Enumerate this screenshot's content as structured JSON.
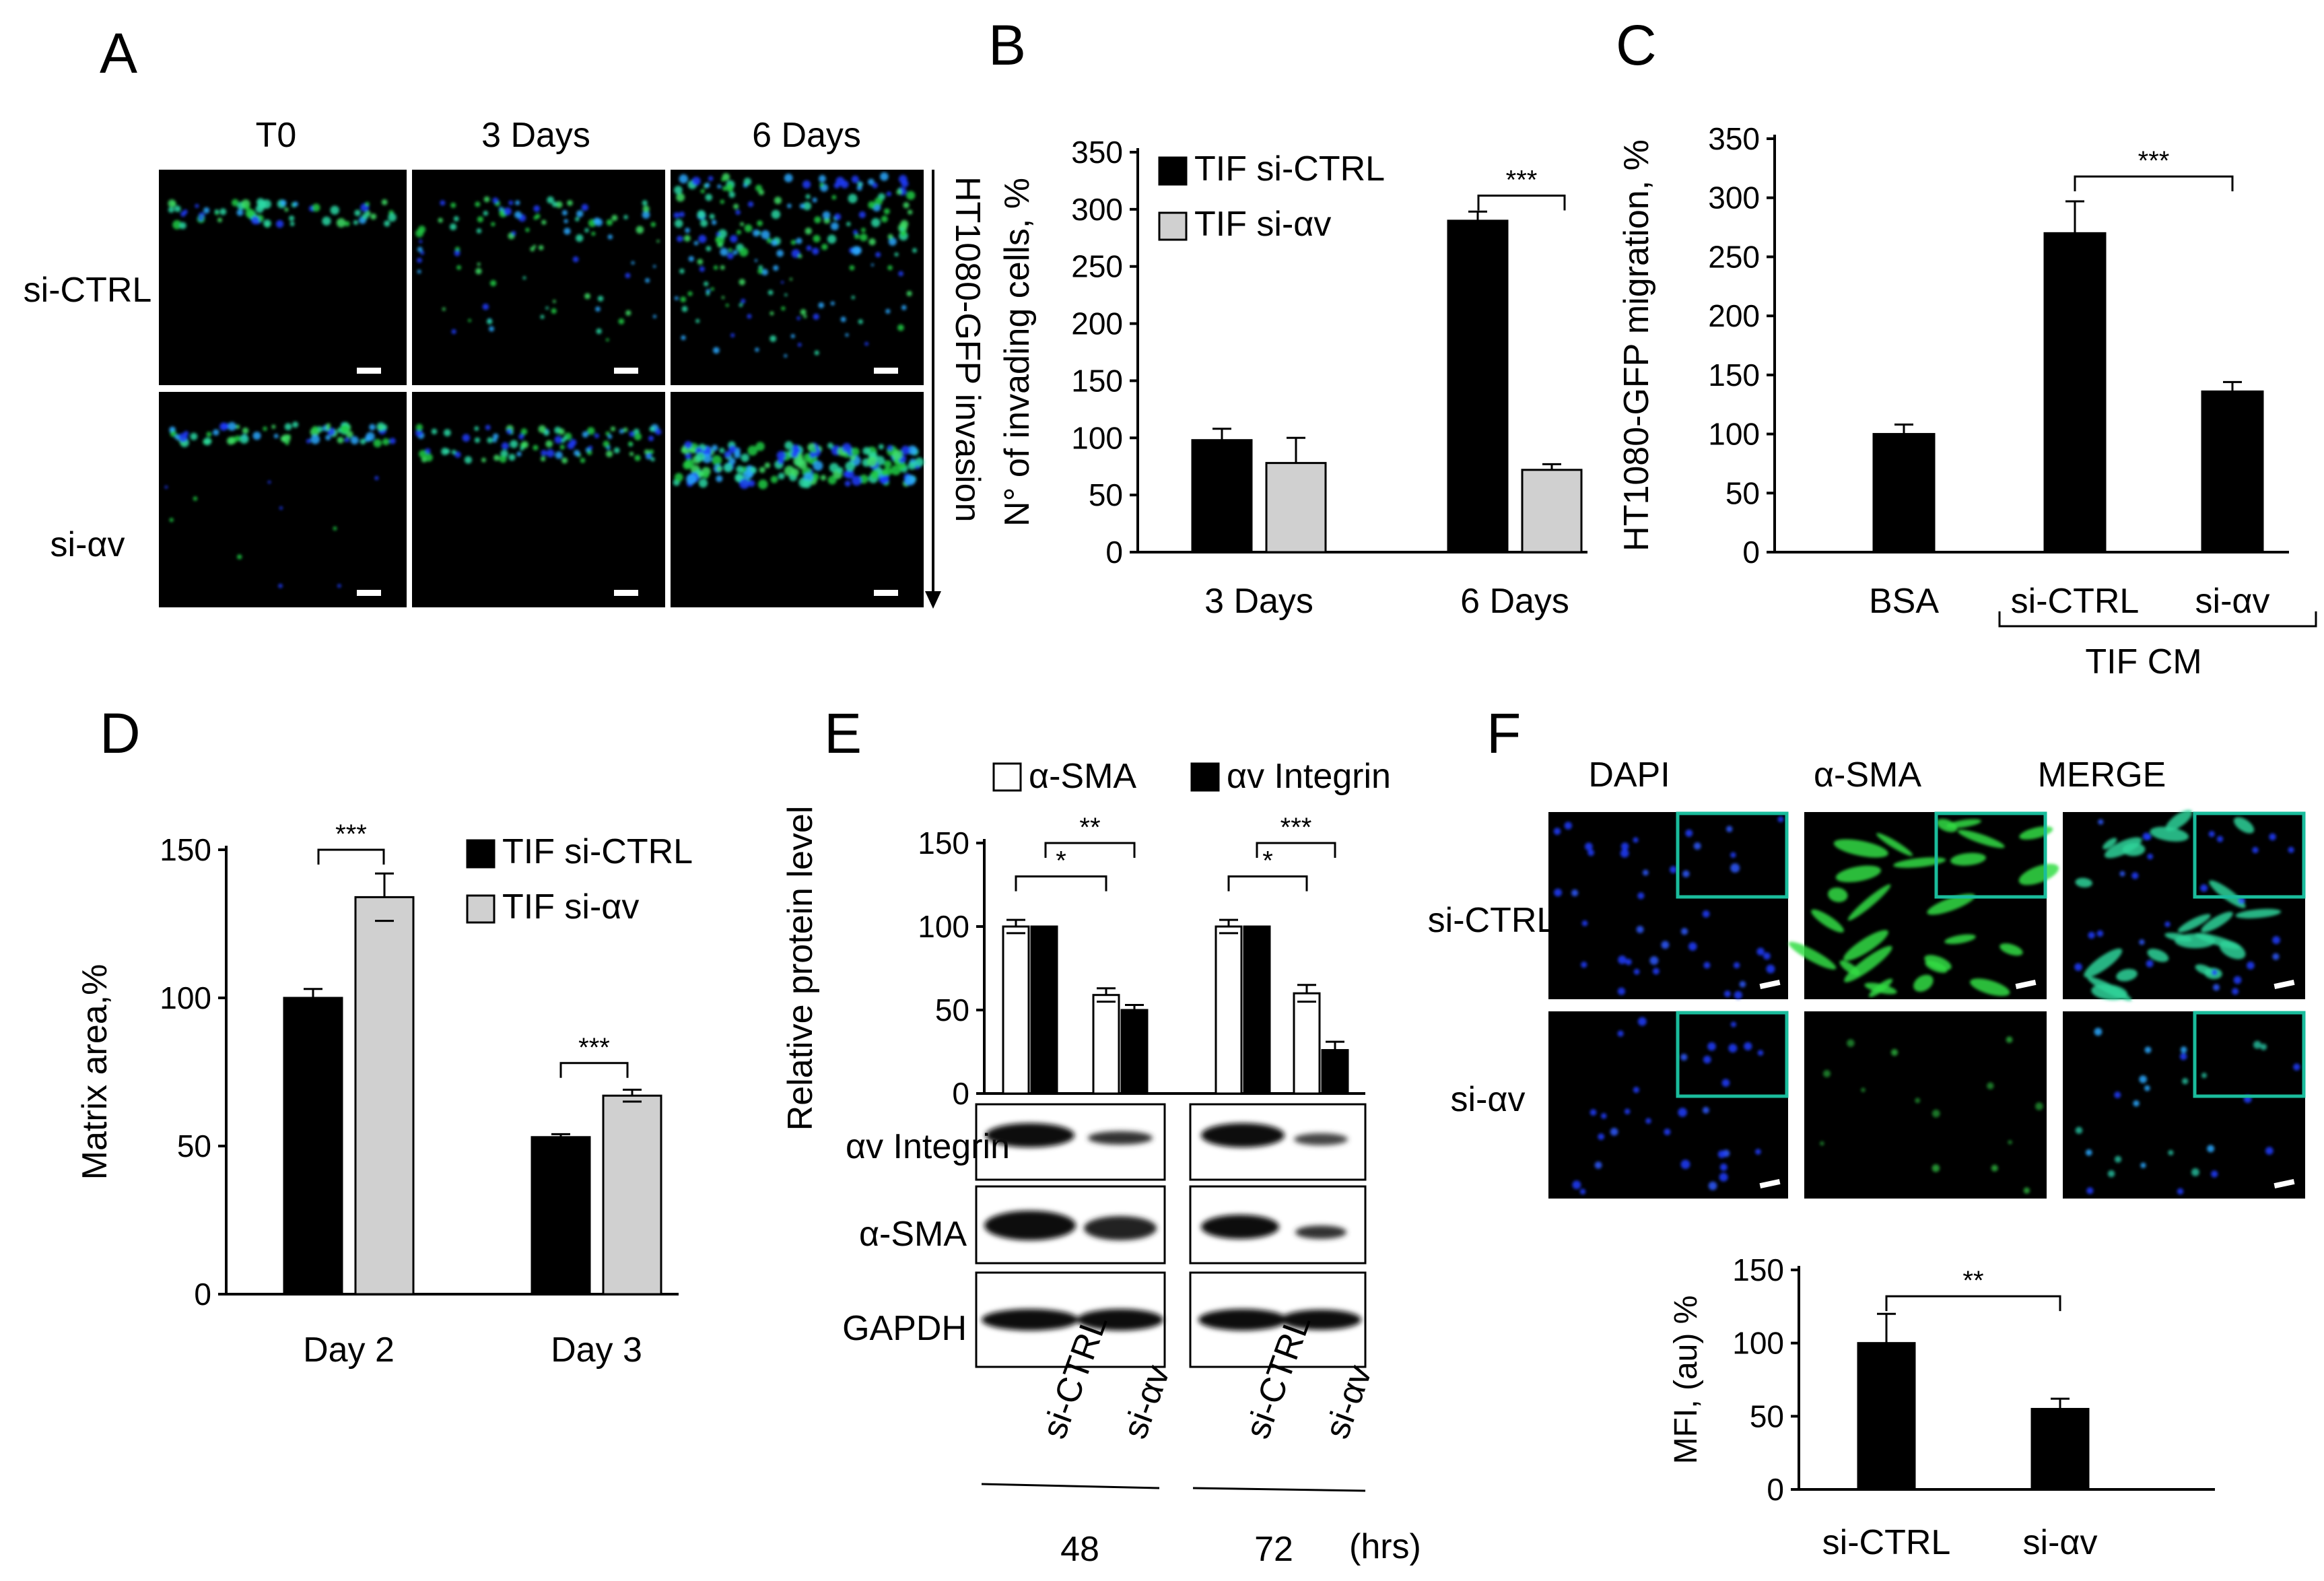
{
  "panels": {
    "A": {
      "label": "A",
      "columns": [
        "T0",
        "3 Days",
        "6 Days"
      ],
      "rows": [
        "si-CTRL",
        "si-αv"
      ],
      "side_label": "HT1080-GFP invasion"
    },
    "E": {
      "label": "E",
      "blot_labels": [
        "αv Integrin",
        "α-SMA",
        "GAPDH"
      ],
      "lane_labels": [
        "si-CTRL",
        "si-αv",
        "si-CTRL",
        "si-αv"
      ],
      "time_labels": [
        "48",
        "72"
      ],
      "time_unit": "(hrs)"
    },
    "F": {
      "label": "F",
      "columns": [
        "DAPI",
        "α-SMA",
        "MERGE"
      ],
      "rows": [
        "si-CTRL",
        "si-αv"
      ]
    }
  },
  "colors": {
    "black_bar": "#000000",
    "grey_bar": "#d0d0d0",
    "white_bar": "#ffffff",
    "micrograph_bg": "#000000",
    "inset_border": "#1abc9c",
    "gfp": "#22cc44",
    "dapi": "#1f3cff"
  },
  "chart_data": [
    {
      "id": "B",
      "type": "bar",
      "label": "B",
      "categories": [
        "3 Days",
        "6 Days"
      ],
      "series": [
        {
          "name": "TIF si-CTRL",
          "values": [
            98,
            290
          ],
          "errors": [
            10,
            8
          ]
        },
        {
          "name": "TIF si-αv",
          "values": [
            78,
            72
          ],
          "errors": [
            22,
            5
          ]
        }
      ],
      "ylabel": "N° of invading cells, %",
      "ylim": [
        0,
        350
      ],
      "yticks": [
        0,
        50,
        100,
        150,
        200,
        250,
        300,
        350
      ],
      "legend": "top-left",
      "significance": [
        {
          "text": "***",
          "category": "6 Days"
        }
      ]
    },
    {
      "id": "C",
      "type": "bar",
      "label": "C",
      "categories": [
        "BSA",
        "si-CTRL",
        "si-αv"
      ],
      "values": [
        100,
        270,
        136
      ],
      "errors": [
        8,
        27,
        8
      ],
      "ylabel": "HT1080-GFP migration, %",
      "ylim": [
        0,
        350
      ],
      "yticks": [
        0,
        50,
        100,
        150,
        200,
        250,
        300,
        350
      ],
      "group_label": "TIF CM",
      "significance": [
        {
          "text": "***",
          "between": [
            "si-CTRL",
            "si-αv"
          ]
        }
      ]
    },
    {
      "id": "D",
      "type": "bar",
      "label": "D",
      "categories": [
        "Day 2",
        "Day 3"
      ],
      "series": [
        {
          "name": "TIF si-CTRL",
          "values": [
            100,
            53
          ],
          "errors": [
            3,
            1
          ]
        },
        {
          "name": "TIF si-αv",
          "values": [
            134,
            67
          ],
          "errors": [
            8,
            2
          ]
        }
      ],
      "ylabel": "Matrix area,%",
      "ylim": [
        0,
        150
      ],
      "yticks": [
        0,
        50,
        100,
        150
      ],
      "legend": "top-right",
      "significance": [
        {
          "text": "***",
          "category": "Day 2"
        },
        {
          "text": "***",
          "category": "Day 3"
        }
      ]
    },
    {
      "id": "E",
      "type": "bar",
      "label": "E",
      "categories": [
        "48 si-CTRL",
        "48 si-αv",
        "72 si-CTRL",
        "72 si-αv"
      ],
      "series": [
        {
          "name": "α-SMA",
          "values": [
            100,
            59,
            100,
            60
          ],
          "errors": [
            4,
            4,
            4,
            5
          ]
        },
        {
          "name": "αv Integrin",
          "values": [
            100,
            50,
            100,
            26
          ],
          "errors": [
            0,
            3,
            0,
            5
          ]
        }
      ],
      "ylabel": "Relative protein level",
      "ylim": [
        0,
        150
      ],
      "yticks": [
        0,
        50,
        100,
        150
      ],
      "legend": "top",
      "significance": [
        {
          "text": "*",
          "between": [
            "48 si-CTRL",
            "48 si-αv"
          ],
          "series": "α-SMA"
        },
        {
          "text": "**",
          "between": [
            "48 si-CTRL",
            "48 si-αv"
          ],
          "series": "αv Integrin"
        },
        {
          "text": "*",
          "between": [
            "72 si-CTRL",
            "72 si-αv"
          ],
          "series": "α-SMA"
        },
        {
          "text": "***",
          "between": [
            "72 si-CTRL",
            "72 si-αv"
          ],
          "series": "αv Integrin"
        }
      ]
    },
    {
      "id": "F",
      "type": "bar",
      "label": "",
      "categories": [
        "si-CTRL",
        "si-αv"
      ],
      "values": [
        100,
        55
      ],
      "errors": [
        20,
        7
      ],
      "ylabel": "MFI, (au) %",
      "ylim": [
        0,
        150
      ],
      "yticks": [
        0,
        50,
        100,
        150
      ],
      "significance": [
        {
          "text": "**",
          "between": [
            "si-CTRL",
            "si-αv"
          ]
        }
      ]
    }
  ]
}
